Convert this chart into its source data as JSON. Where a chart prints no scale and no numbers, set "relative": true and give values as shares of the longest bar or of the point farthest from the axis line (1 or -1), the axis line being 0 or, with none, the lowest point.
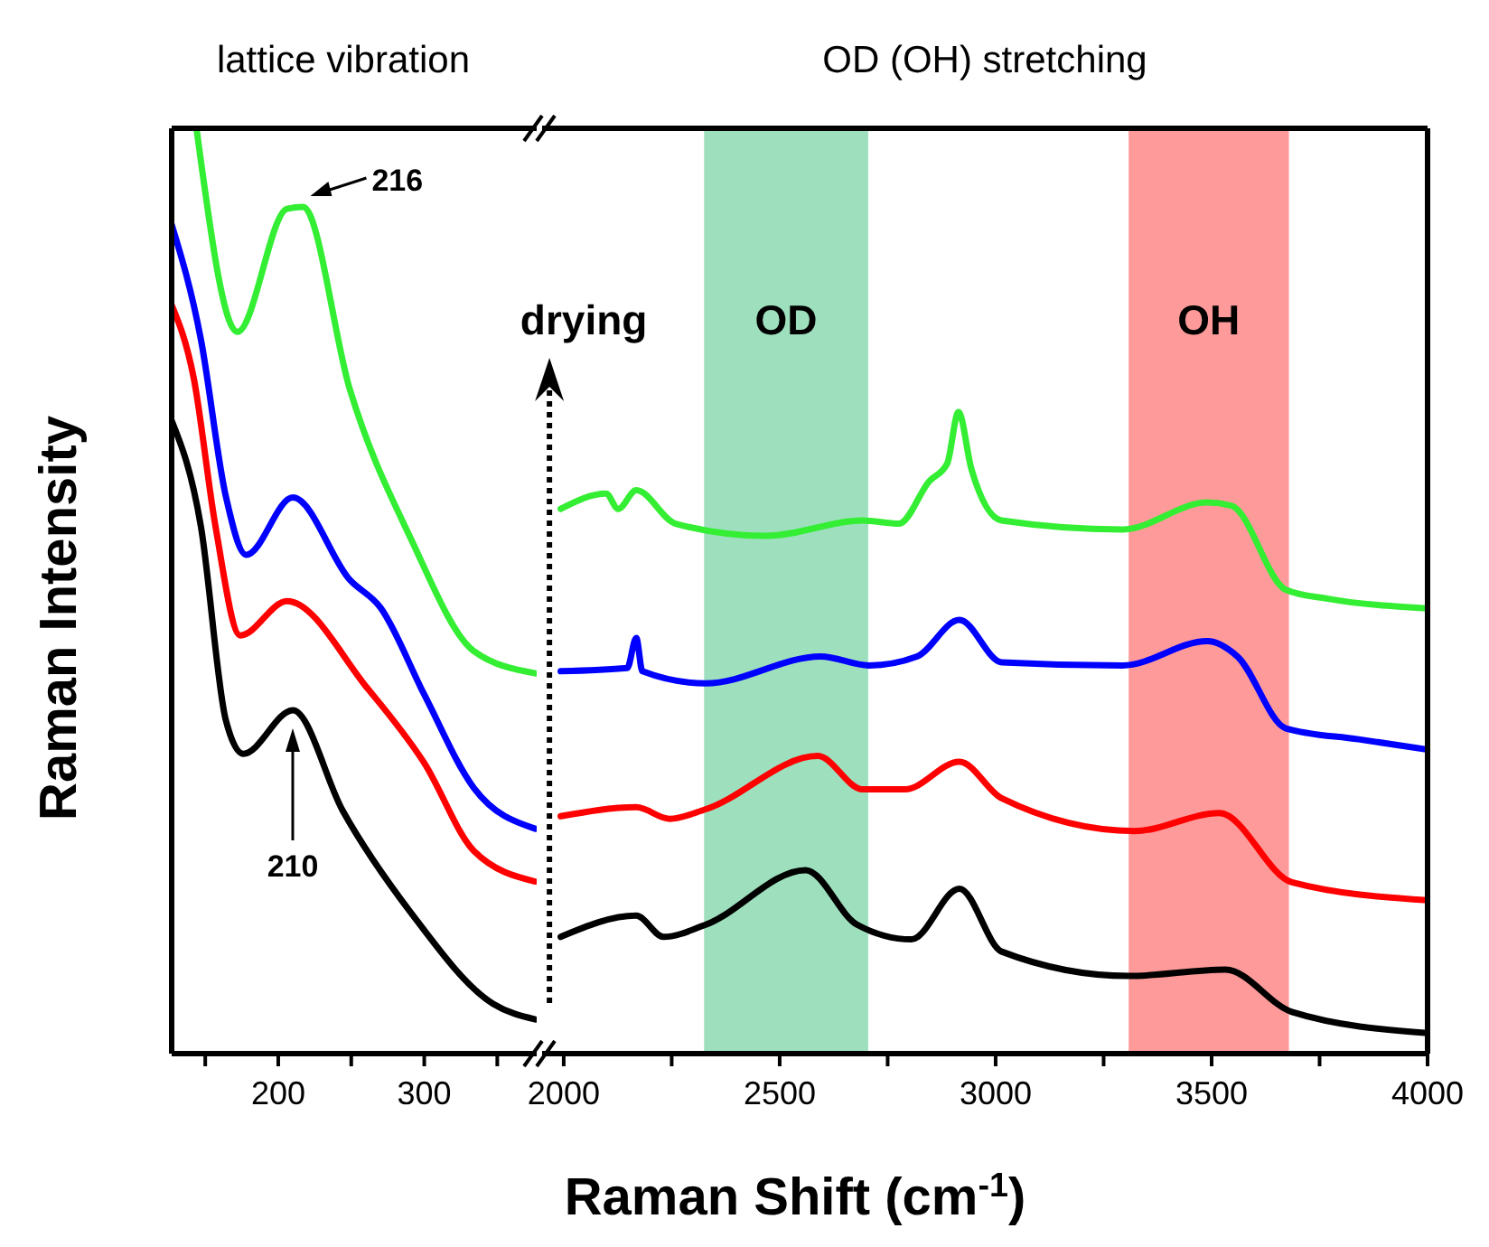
{
  "chart_data": [
    {
      "type": "line",
      "title": "lattice vibration",
      "ylabel": "Raman Intensity",
      "relative": true,
      "tick_labels": "x",
      "xlim": [
        127,
        377
      ],
      "xticks": [
        {
          "value": 150,
          "label": null
        },
        200,
        {
          "value": 250,
          "label": null
        },
        300,
        {
          "value": 350,
          "label": null
        }
      ],
      "annotations": [
        {
          "text": "216",
          "x": 217,
          "y": 0.915
        },
        "210"
      ],
      "series": [
        {
          "color": "#33ee33",
          "x": [
            144,
            172,
            206,
            217,
            249,
            291,
            334,
            376
          ],
          "values": [
            1.0,
            0.78,
            0.913,
            0.915,
            0.718,
            0.556,
            0.435,
            0.411
          ]
        },
        {
          "color": "#0000ff",
          "x": [
            127,
            147,
            164,
            178,
            210,
            249,
            270,
            300,
            334,
            376
          ],
          "values": [
            0.896,
            0.772,
            0.603,
            0.539,
            0.601,
            0.512,
            0.482,
            0.388,
            0.287,
            0.243
          ]
        },
        {
          "color": "#ff0000",
          "x": [
            127,
            142,
            157,
            174,
            206,
            261,
            300,
            334,
            376
          ],
          "values": [
            0.809,
            0.731,
            0.57,
            0.452,
            0.489,
            0.395,
            0.314,
            0.219,
            0.186
          ]
        },
        {
          "color": "#000000",
          "x": [
            127,
            147,
            164,
            176,
            210,
            244,
            291,
            347,
            376
          ],
          "values": [
            0.684,
            0.57,
            0.361,
            0.324,
            0.371,
            0.263,
            0.152,
            0.054,
            0.037
          ]
        }
      ]
    },
    {
      "type": "line",
      "title": "OD (OH) stretching",
      "xlabel": "Raman Shift (cm$^{-1}$)",
      "relative": true,
      "tick_labels": "x",
      "xlim": [
        1950,
        4000
      ],
      "xticks": [
        2000,
        {
          "value": 2250,
          "label": null
        },
        2500,
        {
          "value": 2750,
          "label": null
        },
        3000,
        {
          "value": 3250,
          "label": null
        },
        3500,
        {
          "value": 3750,
          "label": null
        },
        4000
      ],
      "ref_lines": [
        {
          "axis": "x",
          "value": 1967,
          "label": "drying",
          "line_style": "dotted",
          "color": "#000000"
        }
      ],
      "bands": [
        {
          "axis": "x",
          "from": 2325,
          "to": 2705,
          "label": "OD",
          "color": "#9ee0be"
        },
        {
          "axis": "x",
          "from": 3308,
          "to": 3679,
          "label": "OH",
          "color": "#ff9a9a"
        }
      ],
      "series": [
        {
          "color": "#33ee33",
          "x": [
            1993,
            2098,
            2126,
            2168,
            2259,
            2469,
            2692,
            2776,
            2846,
            2888,
            2914,
            2944,
            3014,
            3294,
            3490,
            3546,
            3672,
            3770,
            4000
          ],
          "values": [
            0.849,
            0.873,
            0.849,
            0.878,
            0.826,
            0.807,
            0.831,
            0.826,
            0.892,
            0.92,
            1.0,
            0.911,
            0.831,
            0.817,
            0.859,
            0.854,
            0.723,
            0.709,
            0.694
          ]
        },
        {
          "color": "#0000ff",
          "x": [
            1993,
            2147,
            2168,
            2182,
            2329,
            2595,
            2707,
            2818,
            2916,
            3014,
            3294,
            3490,
            3560,
            3672,
            3840,
            4000
          ],
          "values": [
            0.596,
            0.601,
            0.648,
            0.596,
            0.577,
            0.619,
            0.605,
            0.619,
            0.676,
            0.61,
            0.605,
            0.643,
            0.619,
            0.507,
            0.49,
            0.474
          ]
        },
        {
          "color": "#ff0000",
          "x": [
            1993,
            2168,
            2245,
            2329,
            2588,
            2692,
            2790,
            2916,
            3014,
            3322,
            3518,
            3686,
            4000
          ],
          "values": [
            0.37,
            0.384,
            0.366,
            0.381,
            0.464,
            0.412,
            0.412,
            0.455,
            0.398,
            0.347,
            0.375,
            0.267,
            0.239
          ]
        },
        {
          "color": "#000000",
          "x": [
            1993,
            2168,
            2231,
            2329,
            2560,
            2679,
            2805,
            2916,
            3014,
            3308,
            3532,
            3686,
            4000
          ],
          "values": [
            0.182,
            0.215,
            0.182,
            0.201,
            0.286,
            0.201,
            0.178,
            0.257,
            0.159,
            0.121,
            0.131,
            0.065,
            0.032
          ]
        }
      ]
    }
  ]
}
